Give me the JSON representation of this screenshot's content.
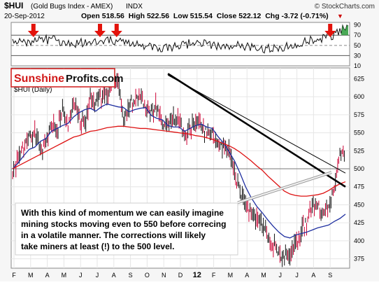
{
  "header": {
    "symbol": "$HUI",
    "name": "(Gold Bugs Index - AMEX)",
    "exchange": "INDX",
    "copyright": "© StockCharts.com",
    "date": "20-Sep-2012",
    "ohlc": "Open 518.56  High 522.56  Low 515.54  Close 522.12  Chg -3.72 (-0.71%)",
    "chg_marker": "▼"
  },
  "brand": {
    "part1": "Sunshine",
    "part2": "Profits.com"
  },
  "annotation": {
    "lines": [
      "With this kind of momentum we can easily imagine",
      "mining stocks moving even to 550 before correcing",
      "in a volatile manner. The corrections will likely",
      "take miners at least (!) to the 500 level."
    ]
  },
  "colors": {
    "price_bar": "#111111",
    "price_down_tick": "#cc0033",
    "ma_blue": "#1f2fa0",
    "ma_red": "#dd1111",
    "arrow": "#e3120b",
    "rsi_fill_green": "#2a9a3a",
    "brand_red": "#d11a1a"
  },
  "chart_data": [
    {
      "type": "line",
      "title": "",
      "series": [
        {
          "values_by_month": [
            55,
            58,
            60,
            62,
            52,
            55,
            58,
            62,
            55,
            50,
            48,
            45,
            50,
            55,
            52,
            48,
            50,
            46,
            44,
            45,
            52,
            58,
            62,
            70,
            88
          ]
        }
      ],
      "yticks": [
        10,
        30,
        50,
        70,
        90
      ],
      "ylim": [
        10,
        95
      ],
      "reference_lines": [
        70,
        30
      ]
    },
    {
      "type": "line",
      "title": "$HUI (Daily)",
      "xlabel": "",
      "ylabel": "",
      "x_ticks": [
        "F",
        "M",
        "A",
        "M",
        "J",
        "J",
        "A",
        "S",
        "O",
        "N",
        "D",
        "12",
        "F",
        "M",
        "A",
        "M",
        "J",
        "J",
        "A",
        "S"
      ],
      "yticks": [
        375,
        400,
        425,
        450,
        475,
        500,
        525,
        550,
        575,
        600,
        625
      ],
      "ylim": [
        362,
        640
      ],
      "series": [
        {
          "name": "",
          "values": [
            490,
            512,
            532,
            542,
            548,
            528,
            532,
            560,
            552,
            578,
            562,
            592,
            568,
            560,
            598,
            592,
            602,
            600,
            622,
            618,
            570,
            588,
            598,
            602,
            582,
            578,
            590,
            560,
            562,
            568,
            572,
            548,
            558,
            560,
            562,
            548,
            552,
            532,
            530,
            528,
            490,
            468,
            452,
            438,
            428,
            422,
            406,
            394,
            384,
            378,
            384,
            398,
            410,
            428,
            448,
            452,
            440,
            446,
            470,
            520,
            522
          ]
        },
        {
          "name": "",
          "values": [
            500,
            508,
            518,
            527,
            530,
            538,
            542,
            552,
            556,
            560,
            563,
            572,
            578,
            582,
            584,
            580,
            586,
            590,
            588,
            586,
            585,
            579,
            582,
            584,
            585,
            574,
            570,
            568,
            560,
            558,
            558,
            552,
            556,
            560,
            562,
            558,
            556,
            545,
            536,
            524,
            511,
            494,
            475,
            460,
            448,
            439,
            429,
            420,
            412,
            406,
            404,
            408,
            410,
            412,
            415,
            418,
            420,
            422,
            427,
            431,
            437
          ]
        },
        {
          "name": "",
          "values": [
            500,
            504,
            508,
            512,
            516,
            520,
            524,
            528,
            532,
            536,
            540,
            544,
            546,
            549,
            552,
            553,
            555,
            557,
            558,
            559,
            559,
            558,
            557,
            556,
            556,
            555,
            554,
            553,
            552,
            551,
            550,
            549,
            548,
            546,
            545,
            543,
            541,
            538,
            535,
            532,
            528,
            523,
            517,
            511,
            504,
            498,
            490,
            483,
            476,
            469,
            465,
            463,
            462,
            462,
            463,
            464,
            466,
            470,
            475,
            479,
            482
          ]
        }
      ],
      "trendlines": [
        {
          "label": "",
          "from": {
            "x_index": 28,
            "y": 632
          },
          "to": {
            "x_index": 60,
            "y": 475
          }
        },
        {
          "label": "",
          "from": {
            "x_index": 28,
            "y": 630
          },
          "to": {
            "x_index": 60,
            "y": 494
          }
        }
      ],
      "horizontal_lines": [
        500
      ],
      "arrows_over_months": [
        "M",
        "J",
        "A",
        "S"
      ]
    }
  ]
}
